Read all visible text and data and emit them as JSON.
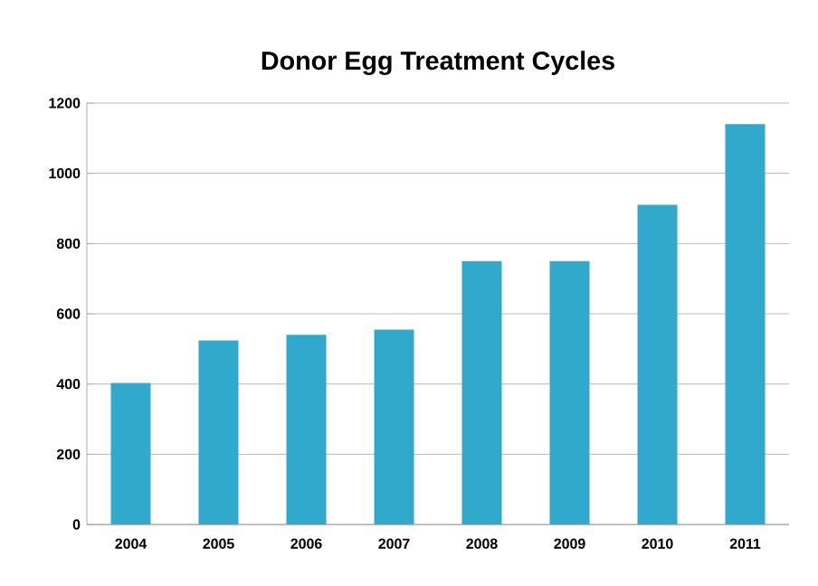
{
  "chart_data": {
    "type": "bar",
    "title": "Donor Egg Treatment Cycles",
    "categories": [
      "2004",
      "2005",
      "2006",
      "2007",
      "2008",
      "2009",
      "2010",
      "2011"
    ],
    "values": [
      403,
      524,
      540,
      555,
      750,
      750,
      910,
      1140
    ],
    "color": "#31a9cc",
    "ylim": [
      0,
      1200
    ],
    "yticks": [
      0,
      200,
      400,
      600,
      800,
      1000,
      1200
    ],
    "grid": "y"
  }
}
